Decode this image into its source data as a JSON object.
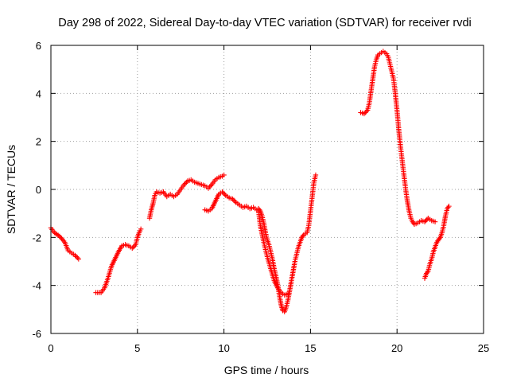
{
  "colors": {
    "series": "#ff0000",
    "grid": "#a0a0a0",
    "axis": "#000000",
    "background": "#ffffff"
  },
  "chart_data": {
    "type": "scatter",
    "title": "Day 298 of 2022, Sidereal Day-to-day VTEC variation (SDTVAR) for receiver rvdi",
    "xlabel": "GPS time / hours",
    "ylabel": "SDTVAR / TECUs",
    "xlim": [
      0,
      25
    ],
    "ylim": [
      -6,
      6
    ],
    "xticks": [
      0,
      5,
      10,
      15,
      20,
      25
    ],
    "yticks": [
      -6,
      -4,
      -2,
      0,
      2,
      4,
      6
    ],
    "xtick_labels": [
      "0",
      "5",
      "10",
      "15",
      "20",
      "25"
    ],
    "ytick_labels": [
      "-6",
      "-4",
      "-2",
      "0",
      "2",
      "4",
      "6"
    ],
    "grid": true,
    "marker": "plus",
    "series": [
      {
        "segments": [
          [
            [
              0.0,
              -1.6
            ],
            [
              0.2,
              -1.8
            ],
            [
              0.5,
              -1.95
            ],
            [
              0.8,
              -2.2
            ],
            [
              1.0,
              -2.55
            ],
            [
              1.2,
              -2.65
            ],
            [
              1.4,
              -2.75
            ],
            [
              1.6,
              -2.9
            ]
          ],
          [
            [
              2.6,
              -4.3
            ],
            [
              2.9,
              -4.3
            ],
            [
              3.1,
              -4.1
            ],
            [
              3.3,
              -3.7
            ],
            [
              3.5,
              -3.2
            ],
            [
              3.7,
              -2.9
            ],
            [
              3.9,
              -2.6
            ],
            [
              4.1,
              -2.35
            ],
            [
              4.3,
              -2.3
            ],
            [
              4.5,
              -2.35
            ],
            [
              4.7,
              -2.45
            ],
            [
              4.9,
              -2.3
            ],
            [
              5.0,
              -2.0
            ],
            [
              5.1,
              -1.8
            ],
            [
              5.2,
              -1.65
            ]
          ],
          [
            [
              5.7,
              -1.2
            ],
            [
              5.8,
              -0.85
            ],
            [
              5.9,
              -0.6
            ],
            [
              6.0,
              -0.25
            ],
            [
              6.1,
              -0.1
            ],
            [
              6.3,
              -0.15
            ],
            [
              6.5,
              -0.1
            ],
            [
              6.7,
              -0.3
            ],
            [
              6.9,
              -0.2
            ],
            [
              7.1,
              -0.3
            ],
            [
              7.3,
              -0.2
            ],
            [
              7.5,
              0.0
            ],
            [
              7.7,
              0.2
            ],
            [
              7.9,
              0.35
            ],
            [
              8.1,
              0.4
            ],
            [
              8.3,
              0.3
            ],
            [
              8.5,
              0.25
            ],
            [
              8.7,
              0.2
            ],
            [
              8.9,
              0.15
            ],
            [
              9.1,
              0.05
            ],
            [
              9.3,
              0.2
            ],
            [
              9.5,
              0.4
            ],
            [
              9.7,
              0.5
            ],
            [
              9.9,
              0.55
            ],
            [
              10.0,
              0.6
            ]
          ],
          [
            [
              8.9,
              -0.85
            ],
            [
              9.1,
              -0.9
            ],
            [
              9.3,
              -0.8
            ],
            [
              9.5,
              -0.5
            ],
            [
              9.7,
              -0.2
            ],
            [
              9.9,
              -0.1
            ],
            [
              10.1,
              -0.25
            ],
            [
              10.3,
              -0.35
            ],
            [
              10.5,
              -0.4
            ],
            [
              10.7,
              -0.55
            ],
            [
              10.9,
              -0.65
            ],
            [
              11.1,
              -0.75
            ],
            [
              11.3,
              -0.7
            ],
            [
              11.5,
              -0.8
            ],
            [
              11.7,
              -0.75
            ],
            [
              11.9,
              -0.85
            ],
            [
              12.0,
              -0.8
            ],
            [
              12.1,
              -0.9
            ],
            [
              12.2,
              -1.1
            ],
            [
              12.3,
              -1.4
            ],
            [
              12.4,
              -1.8
            ],
            [
              12.5,
              -2.1
            ],
            [
              12.6,
              -2.3
            ],
            [
              12.7,
              -2.6
            ],
            [
              12.8,
              -2.9
            ],
            [
              12.9,
              -3.3
            ],
            [
              13.0,
              -3.6
            ],
            [
              13.1,
              -3.95
            ],
            [
              13.2,
              -4.4
            ],
            [
              13.3,
              -4.8
            ],
            [
              13.4,
              -5.05
            ],
            [
              13.5,
              -5.1
            ],
            [
              13.6,
              -4.9
            ],
            [
              13.7,
              -4.6
            ],
            [
              13.8,
              -4.2
            ],
            [
              13.9,
              -3.8
            ],
            [
              14.0,
              -3.4
            ],
            [
              14.1,
              -3.0
            ],
            [
              14.2,
              -2.7
            ],
            [
              14.3,
              -2.4
            ],
            [
              14.4,
              -2.2
            ],
            [
              14.5,
              -2.0
            ],
            [
              14.6,
              -1.9
            ],
            [
              14.7,
              -1.85
            ],
            [
              14.8,
              -1.8
            ],
            [
              14.9,
              -1.5
            ],
            [
              15.0,
              -0.9
            ],
            [
              15.1,
              -0.3
            ],
            [
              15.2,
              0.3
            ],
            [
              15.3,
              0.6
            ]
          ],
          [
            [
              12.0,
              -0.9
            ],
            [
              12.1,
              -1.5
            ],
            [
              12.3,
              -2.2
            ],
            [
              12.5,
              -2.8
            ],
            [
              12.7,
              -3.3
            ],
            [
              12.9,
              -3.8
            ],
            [
              13.1,
              -4.1
            ],
            [
              13.3,
              -4.3
            ],
            [
              13.5,
              -4.4
            ],
            [
              13.7,
              -4.35
            ]
          ],
          [
            [
              17.9,
              3.2
            ],
            [
              18.1,
              3.15
            ],
            [
              18.3,
              3.3
            ],
            [
              18.4,
              3.6
            ],
            [
              18.5,
              4.1
            ],
            [
              18.6,
              4.6
            ],
            [
              18.7,
              5.1
            ],
            [
              18.8,
              5.4
            ],
            [
              18.9,
              5.6
            ],
            [
              19.0,
              5.65
            ],
            [
              19.1,
              5.7
            ],
            [
              19.2,
              5.75
            ],
            [
              19.3,
              5.7
            ],
            [
              19.4,
              5.65
            ],
            [
              19.5,
              5.5
            ],
            [
              19.6,
              5.2
            ],
            [
              19.7,
              4.9
            ],
            [
              19.8,
              4.6
            ],
            [
              19.9,
              4.0
            ],
            [
              20.0,
              3.3
            ],
            [
              20.1,
              2.5
            ],
            [
              20.2,
              1.8
            ],
            [
              20.3,
              1.2
            ],
            [
              20.4,
              0.6
            ],
            [
              20.5,
              0.0
            ],
            [
              20.6,
              -0.5
            ],
            [
              20.7,
              -0.9
            ],
            [
              20.8,
              -1.2
            ],
            [
              20.9,
              -1.35
            ],
            [
              21.0,
              -1.45
            ],
            [
              21.2,
              -1.4
            ],
            [
              21.4,
              -1.3
            ],
            [
              21.6,
              -1.35
            ],
            [
              21.8,
              -1.2
            ],
            [
              22.0,
              -1.3
            ],
            [
              22.2,
              -1.35
            ]
          ],
          [
            [
              21.6,
              -3.7
            ],
            [
              21.7,
              -3.5
            ],
            [
              21.8,
              -3.4
            ],
            [
              21.9,
              -3.1
            ],
            [
              22.0,
              -2.9
            ],
            [
              22.1,
              -2.6
            ],
            [
              22.2,
              -2.4
            ],
            [
              22.3,
              -2.2
            ],
            [
              22.4,
              -2.1
            ],
            [
              22.5,
              -2.0
            ],
            [
              22.6,
              -1.8
            ],
            [
              22.7,
              -1.5
            ],
            [
              22.8,
              -1.1
            ],
            [
              22.9,
              -0.8
            ],
            [
              23.0,
              -0.7
            ]
          ]
        ]
      }
    ]
  }
}
